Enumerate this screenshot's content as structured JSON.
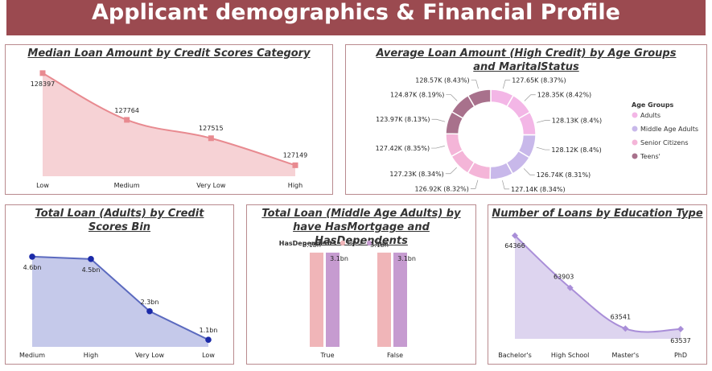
{
  "header": {
    "title": "Applicant demographics & Financial Profile"
  },
  "colors": {
    "banner": "#9b4a50",
    "credit_line": "#e88a90",
    "credit_fill": "#f6d2d5",
    "adults_line": "#5b6abf",
    "adults_fill": "#c5c9ea",
    "adults_marker": "#1b2aa8",
    "edu_line": "#a98ed8",
    "edu_fill": "#ddd4ef",
    "false_bar": "#f0b5b8",
    "true_bar": "#c69bd0",
    "adults": "#f3b6e6",
    "middle_age_adults": "#c8b8ea",
    "senior_citizens": "#f4b5d8",
    "teens": "#a8718c"
  },
  "chart_data": [
    {
      "id": "median_credit",
      "type": "area",
      "title": "Median Loan Amount by Credit Scores Category",
      "categories": [
        "Low",
        "Medium",
        "Very Low",
        "High"
      ],
      "values": [
        128397,
        127764,
        127515,
        127149
      ],
      "labels": [
        "128397",
        "127764",
        "127515",
        "127149"
      ],
      "ylim": [
        127000,
        128450
      ]
    },
    {
      "id": "donut",
      "type": "pie",
      "title": "Average Loan Amount (High Credit) by Age Groups and MaritalStatus",
      "legend": {
        "title": "Age Groups",
        "position": "right",
        "items": [
          "Adults",
          "Middle Age Adults",
          "Senior Citizens",
          "Teens'"
        ]
      },
      "slices": [
        {
          "group": "Adults",
          "value": 127.65,
          "label": "127.65K (8.37%)"
        },
        {
          "group": "Adults",
          "value": 128.35,
          "label": "128.35K (8.42%)"
        },
        {
          "group": "Adults",
          "value": 128.13,
          "label": "128.13K (8.4%)"
        },
        {
          "group": "Middle Age Adults",
          "value": 128.12,
          "label": "128.12K (8.4%)"
        },
        {
          "group": "Middle Age Adults",
          "value": 126.74,
          "label": "126.74K (8.31%)"
        },
        {
          "group": "Middle Age Adults",
          "value": 127.14,
          "label": "127.14K (8.34%)"
        },
        {
          "group": "Senior Citizens",
          "value": 126.92,
          "label": "126.92K (8.32%)"
        },
        {
          "group": "Senior Citizens",
          "value": 127.23,
          "label": "127.23K (8.34%)"
        },
        {
          "group": "Senior Citizens",
          "value": 127.42,
          "label": "127.42K (8.35%)"
        },
        {
          "group": "Teens'",
          "value": 123.97,
          "label": "123.97K (8.13%)"
        },
        {
          "group": "Teens'",
          "value": 124.87,
          "label": "124.87K (8.19%)"
        },
        {
          "group": "Teens'",
          "value": 128.57,
          "label": "128.57K (8.43%)"
        }
      ]
    },
    {
      "id": "adults_credit",
      "type": "area",
      "title": "Total Loan (Adults) by Credit Scores Bin",
      "categories": [
        "Medium",
        "High",
        "Very Low",
        "Low"
      ],
      "values": [
        4.6,
        4.5,
        2.3,
        1.1
      ],
      "labels": [
        "4.6bn",
        "4.5bn",
        "2.3bn",
        "1.1bn"
      ],
      "ylim": [
        0.8,
        4.8
      ]
    },
    {
      "id": "middle_mortgage",
      "type": "bar",
      "title": "Total Loan (Middle Age Adults) by have HasMortgage and HasDependents",
      "legend": {
        "title": "HasDependents",
        "position": "top",
        "items": [
          "False",
          "True"
        ]
      },
      "categories": [
        "True",
        "False"
      ],
      "series": [
        {
          "name": "False",
          "values": [
            3.1,
            3.1
          ],
          "labels": [
            "3.1bn",
            "3.1bn"
          ]
        },
        {
          "name": "True",
          "values": [
            3.1,
            3.1
          ],
          "labels": [
            "3.1bn",
            "3.1bn"
          ]
        }
      ],
      "ylim": [
        0,
        3.6
      ]
    },
    {
      "id": "education",
      "type": "area",
      "title": "Number of Loans by Education Type",
      "categories": [
        "Bachelor's",
        "High School",
        "Master's",
        "PhD"
      ],
      "values": [
        64366,
        63903,
        63541,
        63537
      ],
      "labels": [
        "64366",
        "63903",
        "63541",
        "63537"
      ],
      "ylim": [
        63450,
        64400
      ]
    }
  ]
}
